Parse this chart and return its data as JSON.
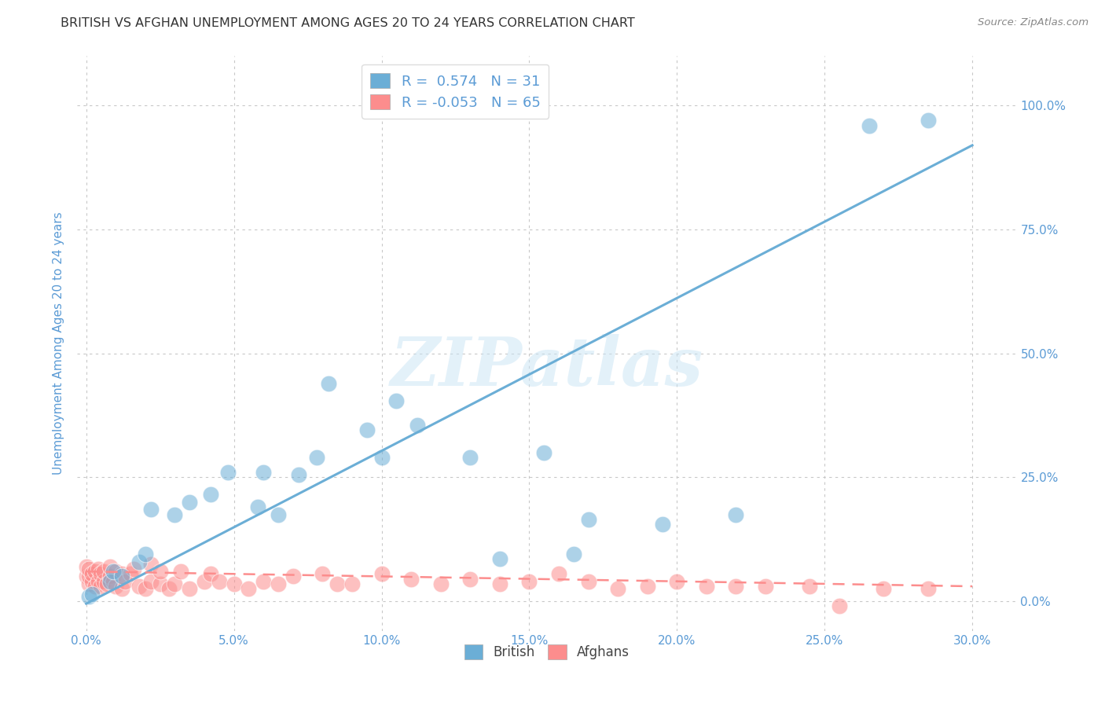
{
  "title": "BRITISH VS AFGHAN UNEMPLOYMENT AMONG AGES 20 TO 24 YEARS CORRELATION CHART",
  "source": "Source: ZipAtlas.com",
  "xlabel_ticks": [
    "0.0%",
    "5.0%",
    "10.0%",
    "15.0%",
    "20.0%",
    "25.0%",
    "30.0%"
  ],
  "xlabel_vals": [
    0.0,
    0.05,
    0.1,
    0.15,
    0.2,
    0.25,
    0.3
  ],
  "ylabel_ticks": [
    "0.0%",
    "25.0%",
    "50.0%",
    "75.0%",
    "100.0%"
  ],
  "ylabel_vals": [
    0.0,
    0.25,
    0.5,
    0.75,
    1.0
  ],
  "ylabel_label": "Unemployment Among Ages 20 to 24 years",
  "xlim": [
    -0.003,
    0.315
  ],
  "ylim": [
    -0.06,
    1.1
  ],
  "british_color": "#6baed6",
  "afghan_color": "#fc8d8d",
  "british_R": 0.574,
  "british_N": 31,
  "afghan_R": -0.053,
  "afghan_N": 65,
  "british_scatter_x": [
    0.001,
    0.002,
    0.008,
    0.009,
    0.012,
    0.018,
    0.02,
    0.022,
    0.03,
    0.035,
    0.042,
    0.048,
    0.058,
    0.06,
    0.065,
    0.072,
    0.078,
    0.082,
    0.095,
    0.1,
    0.105,
    0.112,
    0.13,
    0.14,
    0.155,
    0.165,
    0.17,
    0.195,
    0.22,
    0.265,
    0.285
  ],
  "british_scatter_y": [
    0.01,
    0.015,
    0.04,
    0.06,
    0.05,
    0.08,
    0.095,
    0.185,
    0.175,
    0.2,
    0.215,
    0.26,
    0.19,
    0.26,
    0.175,
    0.255,
    0.29,
    0.44,
    0.345,
    0.29,
    0.405,
    0.355,
    0.29,
    0.085,
    0.3,
    0.095,
    0.165,
    0.155,
    0.175,
    0.96,
    0.97
  ],
  "afghan_scatter_x": [
    0.0,
    0.0,
    0.001,
    0.001,
    0.001,
    0.002,
    0.002,
    0.003,
    0.003,
    0.004,
    0.004,
    0.005,
    0.005,
    0.006,
    0.006,
    0.007,
    0.008,
    0.008,
    0.009,
    0.01,
    0.01,
    0.012,
    0.012,
    0.013,
    0.015,
    0.016,
    0.018,
    0.02,
    0.022,
    0.022,
    0.025,
    0.025,
    0.028,
    0.03,
    0.032,
    0.035,
    0.04,
    0.042,
    0.045,
    0.05,
    0.055,
    0.06,
    0.065,
    0.07,
    0.08,
    0.085,
    0.09,
    0.1,
    0.11,
    0.12,
    0.13,
    0.14,
    0.15,
    0.16,
    0.17,
    0.18,
    0.19,
    0.2,
    0.21,
    0.22,
    0.23,
    0.245,
    0.255,
    0.27,
    0.285
  ],
  "afghan_scatter_y": [
    0.05,
    0.07,
    0.035,
    0.05,
    0.065,
    0.04,
    0.055,
    0.03,
    0.06,
    0.04,
    0.065,
    0.03,
    0.055,
    0.04,
    0.06,
    0.035,
    0.05,
    0.07,
    0.04,
    0.03,
    0.06,
    0.025,
    0.055,
    0.04,
    0.055,
    0.065,
    0.03,
    0.025,
    0.04,
    0.075,
    0.035,
    0.06,
    0.025,
    0.035,
    0.06,
    0.025,
    0.04,
    0.055,
    0.04,
    0.035,
    0.025,
    0.04,
    0.035,
    0.05,
    0.055,
    0.035,
    0.035,
    0.055,
    0.045,
    0.035,
    0.045,
    0.035,
    0.04,
    0.055,
    0.04,
    0.025,
    0.03,
    0.04,
    0.03,
    0.03,
    0.03,
    0.03,
    -0.01,
    0.025,
    0.025
  ],
  "british_line_x": [
    0.0,
    0.3
  ],
  "british_line_y": [
    -0.005,
    0.92
  ],
  "afghan_line_x": [
    0.0,
    0.3
  ],
  "afghan_line_y": [
    0.06,
    0.03
  ],
  "watermark_text": "ZIPatlas",
  "bg_color": "#ffffff",
  "grid_color": "#c8c8c8",
  "title_color": "#333333",
  "tick_color": "#5b9bd5",
  "legend_text_color": "#5b9bd5"
}
